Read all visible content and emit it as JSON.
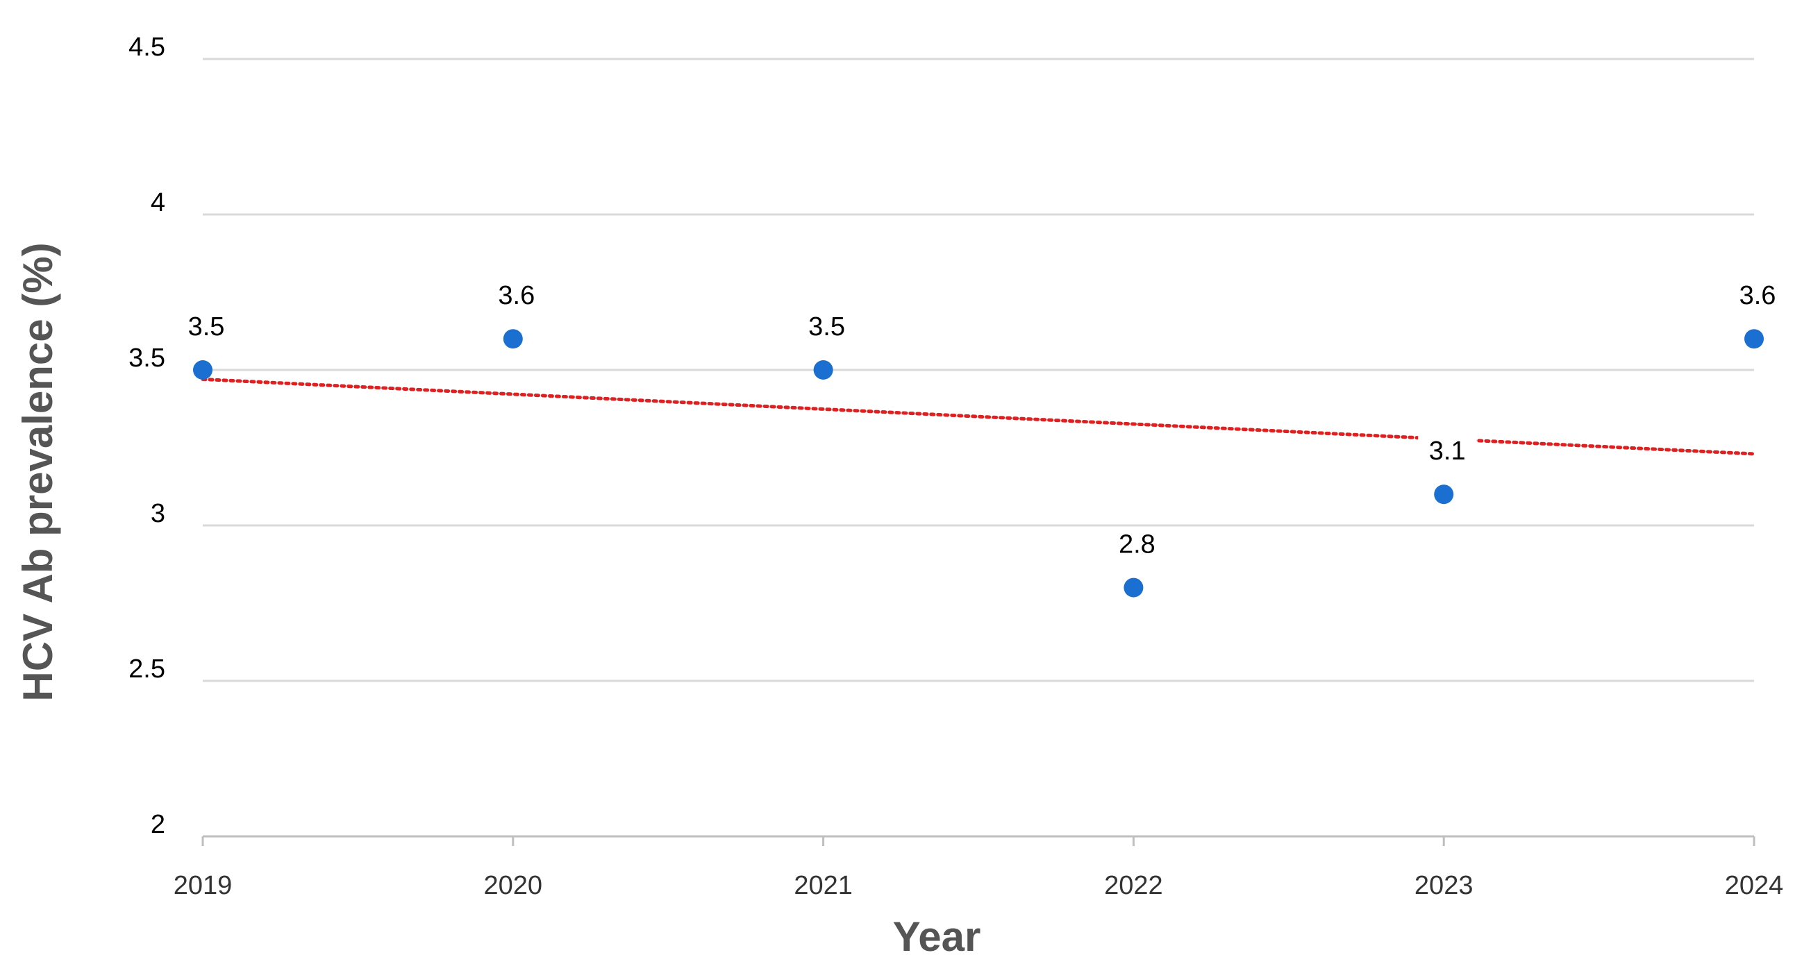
{
  "chart_data": {
    "type": "scatter",
    "title": "",
    "xlabel": "Year",
    "ylabel": "HCV Ab prevalence (%)",
    "x": [
      2019,
      2020,
      2021,
      2022,
      2023,
      2024
    ],
    "x_tick_labels": [
      "2019",
      "2020",
      "2021",
      "2022",
      "2023",
      "2024"
    ],
    "y_ticks": [
      2,
      2.5,
      3,
      3.5,
      4,
      4.5
    ],
    "y_tick_labels": [
      "2",
      "2.5",
      "3",
      "3.5",
      "4",
      "4.5"
    ],
    "xlim": [
      2019,
      2024
    ],
    "ylim": [
      2,
      4.5
    ],
    "grid": true,
    "series": [
      {
        "values": [
          3.5,
          3.6,
          3.5,
          2.8,
          3.1,
          3.6
        ],
        "data_labels": [
          "3.5",
          "3.6",
          "3.5",
          "2.8",
          "3.1",
          "3.6"
        ],
        "color": "#1a6fd0"
      }
    ],
    "trendline": {
      "style": "dotted",
      "color": "#e02020",
      "start": [
        2019,
        3.47
      ],
      "end": [
        2024,
        3.23
      ]
    }
  }
}
